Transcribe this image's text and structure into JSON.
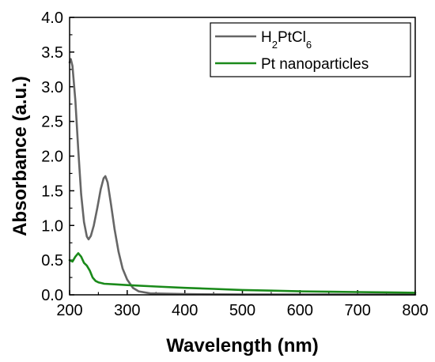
{
  "chart_data": {
    "type": "line",
    "xlabel": "Wavelength (nm)",
    "ylabel": "Absorbance (a.u.)",
    "xlim": [
      200,
      800
    ],
    "ylim": [
      0.0,
      4.0
    ],
    "xticks": [
      "200",
      "300",
      "400",
      "500",
      "600",
      "700",
      "800"
    ],
    "yticks": [
      "0.0",
      "0.5",
      "1.0",
      "1.5",
      "2.0",
      "2.5",
      "3.0",
      "3.5",
      "4.0"
    ],
    "grid": false,
    "legend_position": "top-right",
    "series": [
      {
        "name": "H2PtCl6",
        "legend_parts": [
          [
            "H",
            ""
          ],
          [
            "2",
            "sub"
          ],
          [
            "PtCl",
            ""
          ],
          [
            "6",
            "sub"
          ]
        ],
        "color": "#666666",
        "points": [
          [
            200,
            3.35
          ],
          [
            202,
            3.4
          ],
          [
            205,
            3.3
          ],
          [
            210,
            2.8
          ],
          [
            215,
            2.1
          ],
          [
            220,
            1.45
          ],
          [
            225,
            1.05
          ],
          [
            230,
            0.84
          ],
          [
            233,
            0.8
          ],
          [
            237,
            0.85
          ],
          [
            242,
            1.0
          ],
          [
            248,
            1.25
          ],
          [
            254,
            1.52
          ],
          [
            259,
            1.68
          ],
          [
            262,
            1.71
          ],
          [
            266,
            1.62
          ],
          [
            272,
            1.3
          ],
          [
            278,
            0.95
          ],
          [
            285,
            0.62
          ],
          [
            292,
            0.38
          ],
          [
            300,
            0.22
          ],
          [
            310,
            0.1
          ],
          [
            320,
            0.05
          ],
          [
            340,
            0.02
          ],
          [
            400,
            0.01
          ],
          [
            500,
            0.005
          ],
          [
            600,
            0.005
          ],
          [
            700,
            0.005
          ],
          [
            800,
            0.005
          ]
        ]
      },
      {
        "name": "Pt nanoparticles",
        "color": "#1a8a1a",
        "points": [
          [
            200,
            0.5
          ],
          [
            205,
            0.48
          ],
          [
            210,
            0.55
          ],
          [
            215,
            0.6
          ],
          [
            220,
            0.55
          ],
          [
            225,
            0.46
          ],
          [
            230,
            0.42
          ],
          [
            235,
            0.35
          ],
          [
            240,
            0.25
          ],
          [
            245,
            0.2
          ],
          [
            250,
            0.18
          ],
          [
            260,
            0.16
          ],
          [
            280,
            0.15
          ],
          [
            300,
            0.14
          ],
          [
            350,
            0.12
          ],
          [
            400,
            0.1
          ],
          [
            450,
            0.085
          ],
          [
            500,
            0.07
          ],
          [
            550,
            0.06
          ],
          [
            600,
            0.05
          ],
          [
            650,
            0.045
          ],
          [
            700,
            0.04
          ],
          [
            750,
            0.035
          ],
          [
            800,
            0.03
          ]
        ]
      }
    ]
  }
}
